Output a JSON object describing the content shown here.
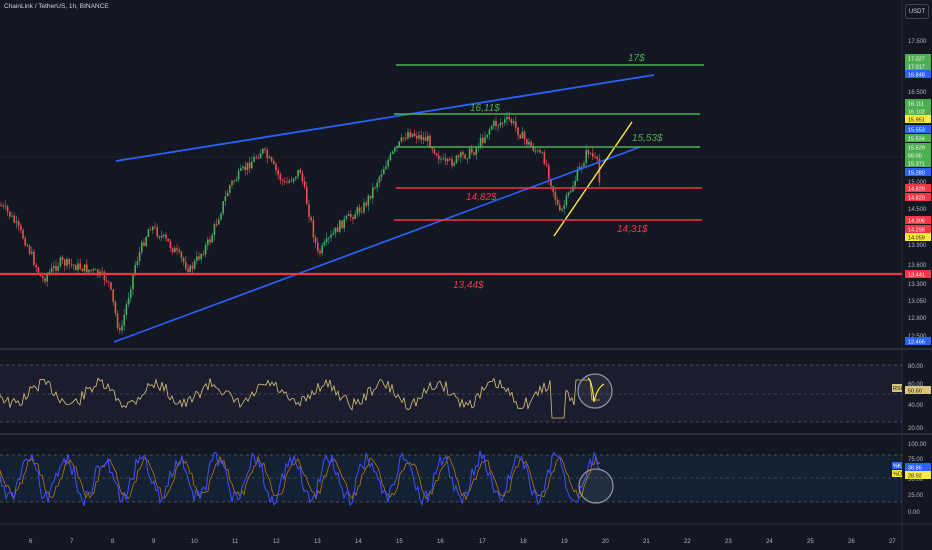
{
  "header": {
    "title": "ChainLink / TetherUS, 1h, BINANCE",
    "currency": "USDT"
  },
  "colors": {
    "bg": "#131722",
    "green": "#4caf50",
    "red": "#f23645",
    "blue": "#2962ff",
    "yellow": "#ffeb3b",
    "purple": "#7e57c2",
    "grid": "#1e222d"
  },
  "annotations": {
    "p17": "17$",
    "p1611": "16,11$",
    "p1553": "15,53$",
    "p1482": "14,82$",
    "p1431": "14,31$",
    "p1344": "13,44$"
  },
  "price_axis": {
    "ticks": [
      "17.500",
      "16.500",
      "15.000",
      "14.500",
      "13.900",
      "13.600",
      "13.300",
      "13.050",
      "12.800",
      "12.500"
    ],
    "tags": [
      {
        "text": "17.027",
        "color": "green"
      },
      {
        "text": "17.017",
        "color": "green"
      },
      {
        "text": "16.848",
        "color": "blue"
      },
      {
        "text": "16.111",
        "color": "green"
      },
      {
        "text": "16.102",
        "color": "green"
      },
      {
        "text": "15.951",
        "color": "yellow"
      },
      {
        "text": "15.553",
        "color": "blue"
      },
      {
        "text": "15.534",
        "color": "green"
      },
      {
        "text": "15.529",
        "color": "green"
      },
      {
        "text": "55:00",
        "color": "green"
      },
      {
        "text": "15.371",
        "color": "green"
      },
      {
        "text": "15.280",
        "color": "blue"
      },
      {
        "text": "14.829",
        "color": "red"
      },
      {
        "text": "14.820",
        "color": "red"
      },
      {
        "text": "14.306",
        "color": "red"
      },
      {
        "text": "14.298",
        "color": "red"
      },
      {
        "text": "14.059",
        "color": "yellow"
      },
      {
        "text": "13.441",
        "color": "red"
      },
      {
        "text": "12.466",
        "color": "blue"
      }
    ]
  },
  "rsi_panel": {
    "ticks": [
      "80.00",
      "60.00",
      "40.00",
      "20.00"
    ],
    "label": "RSI",
    "value": "50.60"
  },
  "stoch_panel": {
    "ticks": [
      "100.00",
      "75.00",
      "50.00",
      "25.00",
      "0.00"
    ],
    "label_k": "%K",
    "label_d": "%D",
    "value_k": "38.86",
    "value_d": "28.92"
  },
  "time_axis": [
    "6",
    "7",
    "8",
    "9",
    "10",
    "11",
    "12",
    "13",
    "14",
    "15",
    "16",
    "17",
    "18",
    "19",
    "20",
    "21",
    "22",
    "23",
    "24",
    "25",
    "26",
    "27"
  ]
}
